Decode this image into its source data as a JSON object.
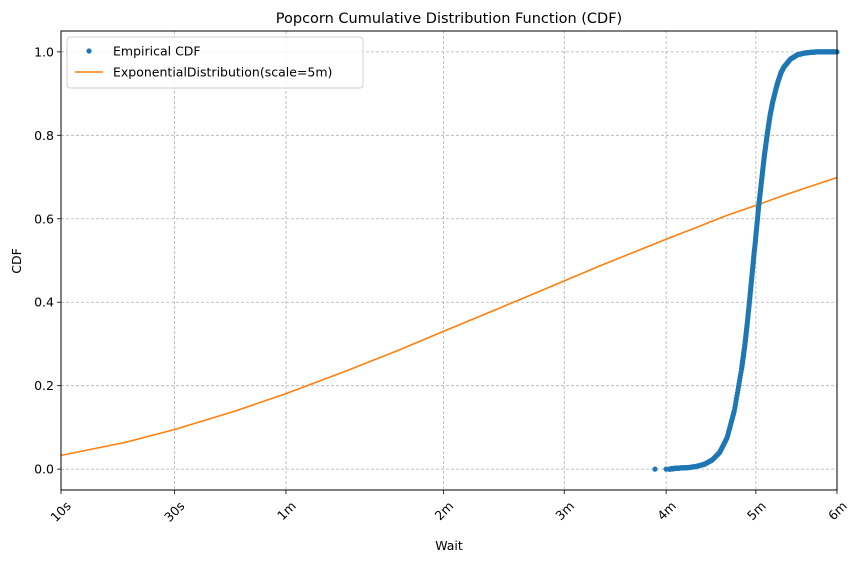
{
  "chart_data": {
    "type": "line",
    "title": "Popcorn Cumulative Distribution Function (CDF)",
    "xlabel": "Wait",
    "ylabel": "CDF",
    "xlim": [
      10,
      360
    ],
    "ylim": [
      -0.05,
      1.05
    ],
    "x_ticks": [
      {
        "value": 10,
        "label": "10s"
      },
      {
        "value": 30,
        "label": "30s"
      },
      {
        "value": 60,
        "label": "1m"
      },
      {
        "value": 120,
        "label": "2m"
      },
      {
        "value": 180,
        "label": "3m"
      },
      {
        "value": 240,
        "label": "4m"
      },
      {
        "value": 300,
        "label": "5m"
      },
      {
        "value": 360,
        "label": "6m"
      }
    ],
    "y_ticks": [
      {
        "value": 0.0,
        "label": "0.0"
      },
      {
        "value": 0.2,
        "label": "0.2"
      },
      {
        "value": 0.4,
        "label": "0.4"
      },
      {
        "value": 0.6,
        "label": "0.6"
      },
      {
        "value": 0.8,
        "label": "0.8"
      },
      {
        "value": 1.0,
        "label": "1.0"
      }
    ],
    "grid": true,
    "legend_position": "top-left",
    "series": [
      {
        "name": "Empirical CDF",
        "kind": "scatter",
        "color": "#1f77b4",
        "x": [
          233,
          240,
          242,
          244,
          246,
          250,
          255,
          260,
          265,
          270,
          275,
          280,
          285,
          290,
          292,
          294,
          296,
          298,
          300,
          302,
          304,
          306,
          308,
          310,
          312,
          315,
          318,
          320,
          325,
          330,
          335,
          340,
          345,
          350,
          355,
          360
        ],
        "y": [
          0.0,
          0.0,
          0.0,
          0.001,
          0.002,
          0.003,
          0.004,
          0.007,
          0.012,
          0.022,
          0.04,
          0.075,
          0.14,
          0.24,
          0.29,
          0.35,
          0.42,
          0.49,
          0.56,
          0.63,
          0.69,
          0.75,
          0.8,
          0.845,
          0.88,
          0.92,
          0.95,
          0.963,
          0.983,
          0.993,
          0.997,
          0.999,
          1.0,
          1.0,
          1.0,
          1.0
        ]
      },
      {
        "name": "ExponentialDistribution(scale=5m)",
        "kind": "line",
        "color": "#ff7f0e",
        "x": [
          10,
          20,
          30,
          45,
          60,
          80,
          100,
          120,
          140,
          160,
          180,
          200,
          220,
          240,
          260,
          280,
          300,
          320,
          340,
          360
        ],
        "y": [
          0.033,
          0.064,
          0.095,
          0.139,
          0.181,
          0.234,
          0.283,
          0.33,
          0.373,
          0.413,
          0.451,
          0.487,
          0.52,
          0.551,
          0.58,
          0.608,
          0.632,
          0.656,
          0.678,
          0.699
        ]
      }
    ]
  }
}
